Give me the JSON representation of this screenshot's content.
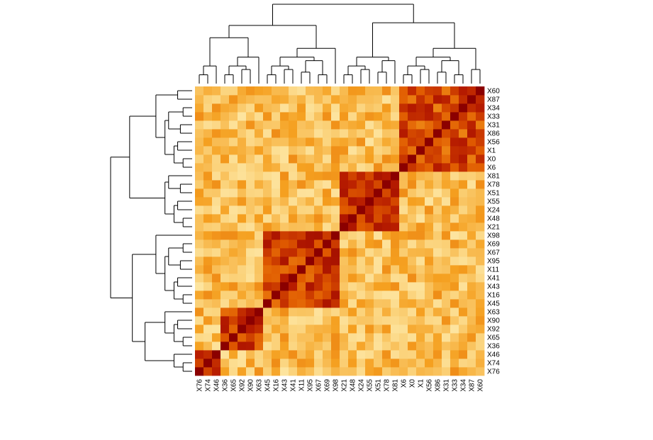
{
  "chart_data": {
    "type": "heatmap",
    "title": "",
    "xlabel": "",
    "ylabel": "",
    "color_scale": [
      "#8b0000",
      "#b71c00",
      "#e05a00",
      "#f5a020",
      "#fbd27a",
      "#fff8c8"
    ],
    "row_labels_bottom_to_top": [
      "X76",
      "X74",
      "X46",
      "X36",
      "X65",
      "X92",
      "X90",
      "X63",
      "X45",
      "X16",
      "X43",
      "X41",
      "X11",
      "X95",
      "X67",
      "X69",
      "X98",
      "X21",
      "X48",
      "X24",
      "X55",
      "X51",
      "X78",
      "X81",
      "X6",
      "X0",
      "X1",
      "X56",
      "X86",
      "X31",
      "X33",
      "X34",
      "X87",
      "X60"
    ],
    "col_labels_left_to_right": [
      "X76",
      "X74",
      "X46",
      "X36",
      "X65",
      "X92",
      "X90",
      "X63",
      "X45",
      "X16",
      "X43",
      "X41",
      "X11",
      "X95",
      "X67",
      "X69",
      "X98",
      "X21",
      "X48",
      "X24",
      "X55",
      "X51",
      "X78",
      "X81",
      "X6",
      "X0",
      "X1",
      "X56",
      "X86",
      "X31",
      "X33",
      "X34",
      "X87",
      "X60"
    ],
    "clusters": [
      {
        "members": [
          "X76",
          "X74",
          "X46"
        ],
        "within": 0.82
      },
      {
        "members": [
          "X36",
          "X65",
          "X92",
          "X90",
          "X63"
        ],
        "within": 0.72
      },
      {
        "members": [
          "X45",
          "X16",
          "X43",
          "X41",
          "X11",
          "X95",
          "X67",
          "X69",
          "X98"
        ],
        "within": 0.7
      },
      {
        "members": [
          "X21",
          "X48",
          "X24",
          "X55",
          "X51",
          "X78",
          "X81"
        ],
        "within": 0.74
      },
      {
        "members": [
          "X6",
          "X0",
          "X1",
          "X56",
          "X86",
          "X31",
          "X33",
          "X34",
          "X87",
          "X60"
        ],
        "within": 0.65
      }
    ],
    "between_clusters": 0.28,
    "diagonal": 1.0,
    "grid": false
  }
}
